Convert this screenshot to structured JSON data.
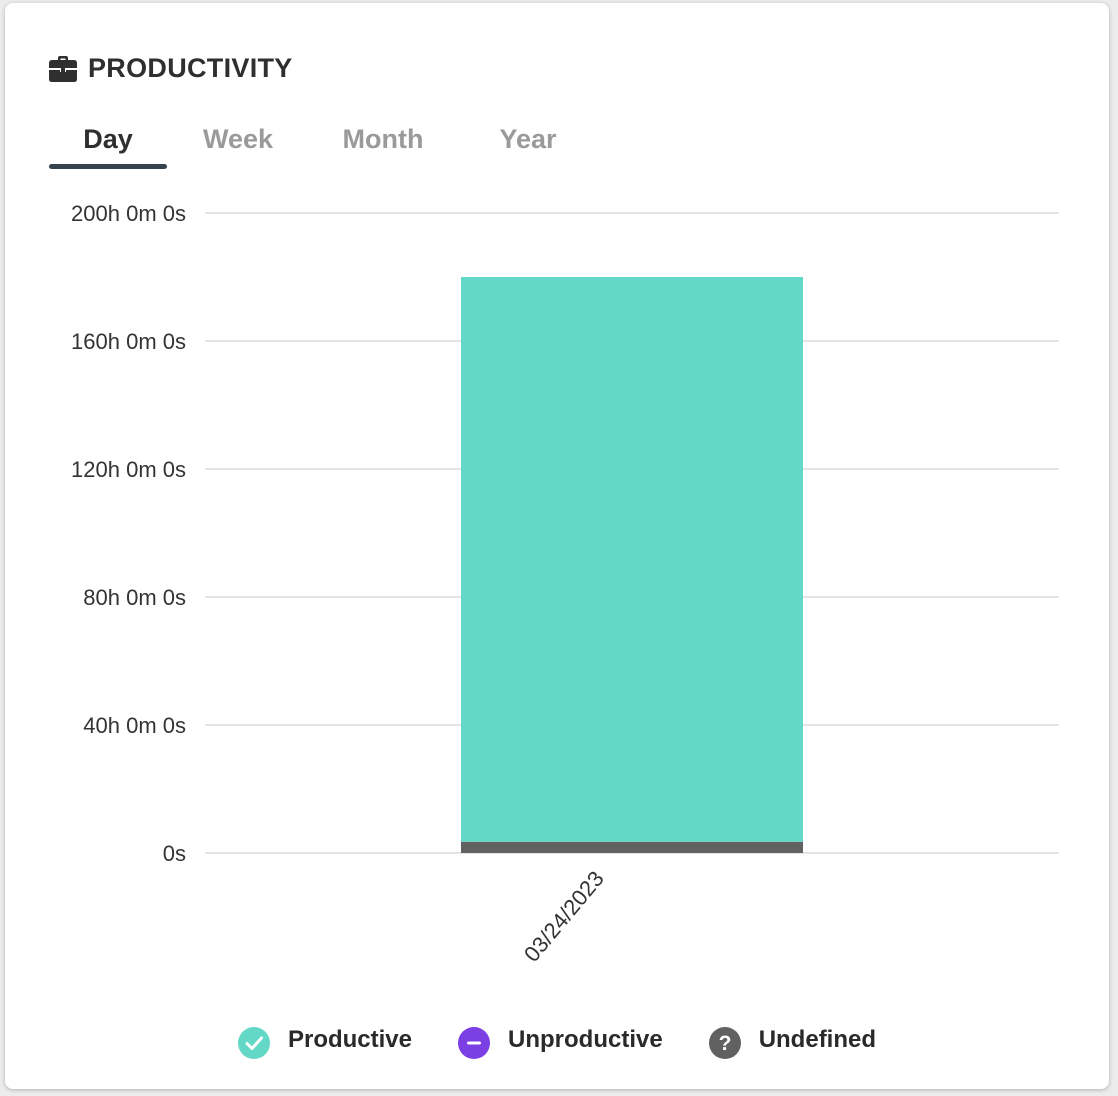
{
  "header": {
    "title": "PRODUCTIVITY",
    "icon": "briefcase-icon"
  },
  "tabs": [
    {
      "label": "Day",
      "active": true
    },
    {
      "label": "Week",
      "active": false
    },
    {
      "label": "Month",
      "active": false
    },
    {
      "label": "Year",
      "active": false
    }
  ],
  "colors": {
    "productive": "#64d8c6",
    "unproductive": "#7b3fe4",
    "undefined": "#616161",
    "grid": "#dcdcdc",
    "tab_active": "#37434c"
  },
  "chart_data": {
    "type": "bar",
    "stacked": true,
    "categories": [
      "03/24/2023"
    ],
    "series": [
      {
        "name": "Productive",
        "values": [
          176.5
        ]
      },
      {
        "name": "Unproductive",
        "values": [
          0
        ]
      },
      {
        "name": "Undefined",
        "values": [
          3.5
        ]
      }
    ],
    "ylim": [
      0,
      200
    ],
    "yticks": [
      {
        "value": 0,
        "label": "0s"
      },
      {
        "value": 40,
        "label": "40h 0m 0s"
      },
      {
        "value": 80,
        "label": "80h 0m 0s"
      },
      {
        "value": 120,
        "label": "120h 0m 0s"
      },
      {
        "value": 160,
        "label": "160h 0m 0s"
      },
      {
        "value": 200,
        "label": "200h 0m 0s"
      }
    ],
    "grid": true,
    "legend_position": "bottom"
  },
  "legend": [
    {
      "label": "Productive",
      "icon": "check-circle-icon"
    },
    {
      "label": "Unproductive",
      "icon": "minus-circle-icon"
    },
    {
      "label": "Undefined",
      "icon": "question-circle-icon"
    }
  ]
}
